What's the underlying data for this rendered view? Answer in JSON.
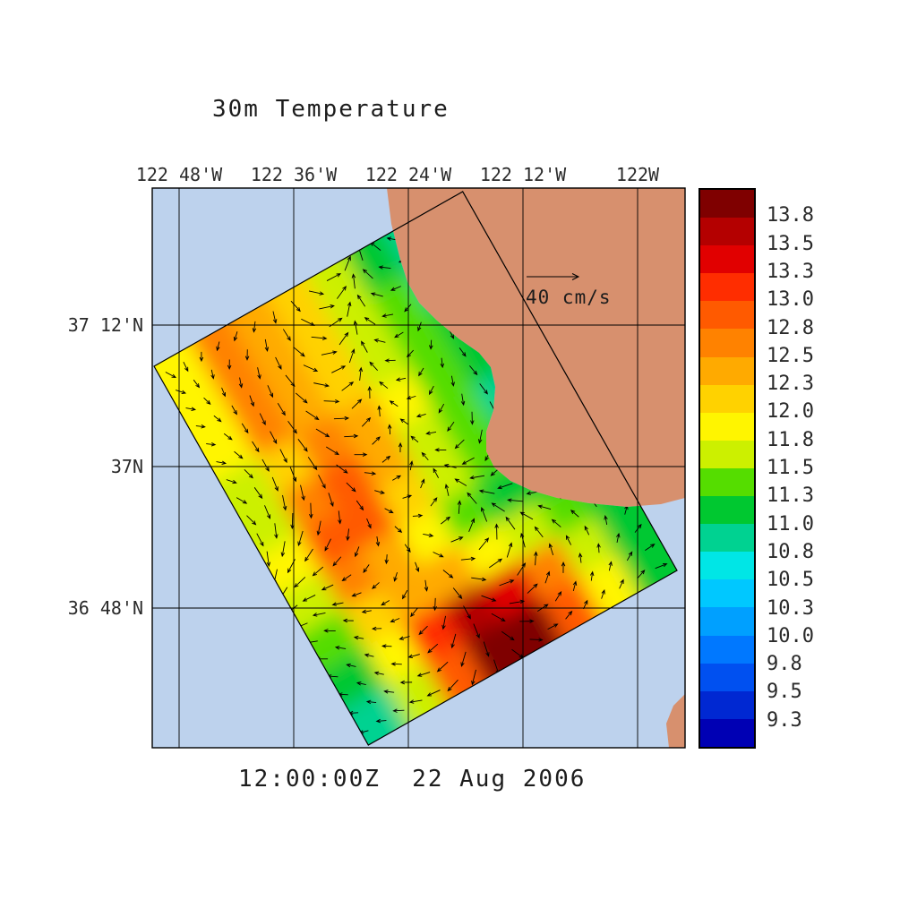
{
  "title": "30m Temperature",
  "timestamp": "12:00:00Z  22 Aug 2006",
  "reference_vector": {
    "label": "40 cm/s"
  },
  "axes": {
    "top_ticks": [
      "122 48'W",
      "122 36'W",
      "122 24'W",
      "122 12'W",
      "122W"
    ],
    "left_ticks": [
      "37 12'N",
      "37N",
      "36 48'N"
    ]
  },
  "colorbar": {
    "tick_labels": [
      "13.8",
      "13.5",
      "13.3",
      "13.0",
      "12.8",
      "12.5",
      "12.3",
      "12.0",
      "11.8",
      "11.5",
      "11.3",
      "11.0",
      "10.8",
      "10.5",
      "10.3",
      "10.0",
      "9.8",
      "9.5",
      "9.3"
    ],
    "band_colors": [
      "#7f0000",
      "#b40000",
      "#e10000",
      "#ff2d00",
      "#ff5a00",
      "#ff8200",
      "#ffaa00",
      "#ffd200",
      "#fff500",
      "#ccf000",
      "#55dd00",
      "#00c830",
      "#00d291",
      "#00e6e6",
      "#00c8ff",
      "#00a0ff",
      "#0078ff",
      "#0050f0",
      "#0028d2",
      "#0000b4"
    ]
  },
  "map": {
    "ocean_color": "#bdd2ed",
    "land_color": "#d7906e"
  },
  "chart_data": {
    "type": "heatmap",
    "title": "30m Temperature",
    "valid_time": "12:00:00Z 22 Aug 2006",
    "x_tick_labels": [
      "122 48'W",
      "122 36'W",
      "122 24'W",
      "122 12'W",
      "122W"
    ],
    "y_tick_labels": [
      "37 12'N",
      "37N",
      "36 48'N"
    ],
    "colorbar_levels": [
      13.8,
      13.5,
      13.3,
      13.0,
      12.8,
      12.5,
      12.3,
      12.0,
      11.8,
      11.5,
      11.3,
      11.0,
      10.8,
      10.5,
      10.3,
      10.0,
      9.8,
      9.5,
      9.3
    ],
    "vector_reference_label": "40 cm/s",
    "legend_position": "right",
    "grid": {
      "cols": 8,
      "rows": 10,
      "note": "Estimated temperature values over the rotated model domain; row 0 is the NW edge, last row the SE edge near the coast; warm core (>13.8) lies off the southern coast.",
      "values": [
        [
          11.8,
          12.5,
          12.3,
          12.0,
          11.5,
          11.0,
          10.8,
          10.8
        ],
        [
          11.8,
          12.5,
          12.3,
          12.0,
          11.5,
          11.3,
          10.8,
          10.8
        ],
        [
          11.8,
          12.5,
          12.3,
          12.0,
          11.5,
          11.3,
          11.0,
          10.8
        ],
        [
          11.5,
          12.0,
          12.5,
          12.3,
          11.8,
          11.3,
          11.0,
          10.8
        ],
        [
          11.5,
          12.5,
          12.8,
          12.3,
          11.5,
          11.3,
          10.8,
          10.8
        ],
        [
          11.8,
          12.8,
          12.8,
          12.0,
          11.5,
          11.3,
          11.0,
          10.8
        ],
        [
          11.5,
          12.5,
          12.3,
          11.8,
          11.3,
          11.0,
          11.0,
          11.0
        ],
        [
          11.3,
          12.0,
          12.3,
          12.3,
          11.8,
          11.5,
          11.3,
          11.0
        ],
        [
          11.0,
          11.8,
          13.0,
          13.6,
          13.4,
          12.5,
          11.5,
          11.0
        ],
        [
          10.8,
          11.5,
          12.8,
          13.9,
          13.9,
          12.8,
          11.8,
          11.0
        ]
      ]
    }
  }
}
